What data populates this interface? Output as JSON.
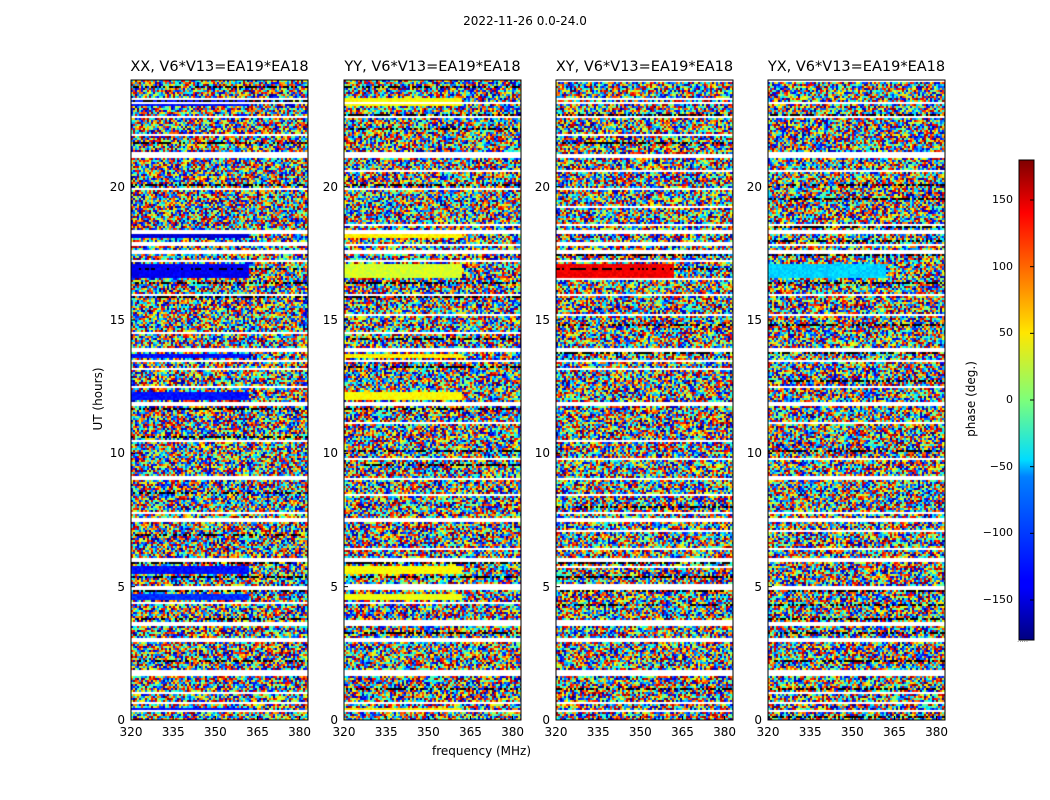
{
  "suptitle": "2022-11-26 0.0-24.0",
  "xlabel": "frequency (MHz)",
  "ylabel": "UT (hours)",
  "colorbar_label": "phase (deg.)",
  "colorbar_note": ".....",
  "chart_data": {
    "type": "heatmap",
    "suptitle": "2022-11-26 0.0-24.0",
    "colormap": "jet",
    "colorbar": {
      "label": "phase (deg.)",
      "range": [
        -180,
        180
      ],
      "ticks": [
        -150,
        -100,
        -50,
        0,
        50,
        100,
        150
      ],
      "tick_labels": [
        "−150",
        "−100",
        "−50",
        "0",
        "50",
        "100",
        "150"
      ]
    },
    "xlabel": "frequency (MHz)",
    "ylabel": "UT (hours)",
    "xlim": [
      320,
      383
    ],
    "ylim": [
      0,
      24
    ],
    "xticks": [
      320,
      335,
      350,
      365,
      380
    ],
    "yticks": [
      0,
      5,
      10,
      15,
      20
    ],
    "panels": [
      {
        "title": "XX, V6*V13=EA19*EA18",
        "polarization": "XX"
      },
      {
        "title": "YY, V6*V13=EA19*EA18",
        "polarization": "YY"
      },
      {
        "title": "XY, V6*V13=EA19*EA18",
        "polarization": "XY"
      },
      {
        "title": "YX, V6*V13=EA19*EA18",
        "polarization": "YX"
      }
    ],
    "flagged_ut_bands": [
      [
        0.6,
        0.7
      ],
      [
        1.65,
        1.85
      ],
      [
        2.95,
        3.1
      ],
      [
        3.55,
        3.65
      ],
      [
        4.85,
        5.05
      ],
      [
        5.95,
        6.05
      ],
      [
        7.45,
        7.55
      ],
      [
        9.0,
        9.1
      ],
      [
        11.8,
        11.95
      ],
      [
        13.4,
        13.5
      ],
      [
        13.8,
        13.95
      ],
      [
        15.9,
        16.0
      ],
      [
        17.45,
        17.6
      ],
      [
        17.75,
        17.85
      ],
      [
        18.25,
        18.35
      ],
      [
        21.1,
        21.2
      ],
      [
        22.55,
        22.65
      ],
      [
        23.1,
        23.2
      ]
    ],
    "coherent_rows": [
      {
        "ut": [
          0.35,
          0.45
        ],
        "XX": -130,
        "YY": 55,
        "XY": null,
        "YX": null
      },
      {
        "ut": [
          4.5,
          4.75
        ],
        "XX": -120,
        "YY": 40,
        "XY": null,
        "YX": null
      },
      {
        "ut": [
          5.5,
          5.8
        ],
        "XX": -130,
        "YY": 45,
        "XY": null,
        "YX": null
      },
      {
        "ut": [
          12.0,
          12.3
        ],
        "XX": -130,
        "YY": 45,
        "XY": null,
        "YX": null
      },
      {
        "ut": [
          13.55,
          13.7
        ],
        "XX": -130,
        "YY": 50,
        "XY": null,
        "YX": null
      },
      {
        "ut": [
          16.6,
          17.1
        ],
        "XX": -140,
        "YY": 30,
        "XY": 140,
        "YX": -60
      },
      {
        "ut": [
          18.1,
          18.25
        ],
        "XX": -150,
        "YY": 50,
        "XY": null,
        "YX": null
      },
      {
        "ut": [
          23.0,
          23.3
        ],
        "XX": -130,
        "YY": 45,
        "XY": null,
        "YX": null
      }
    ]
  }
}
